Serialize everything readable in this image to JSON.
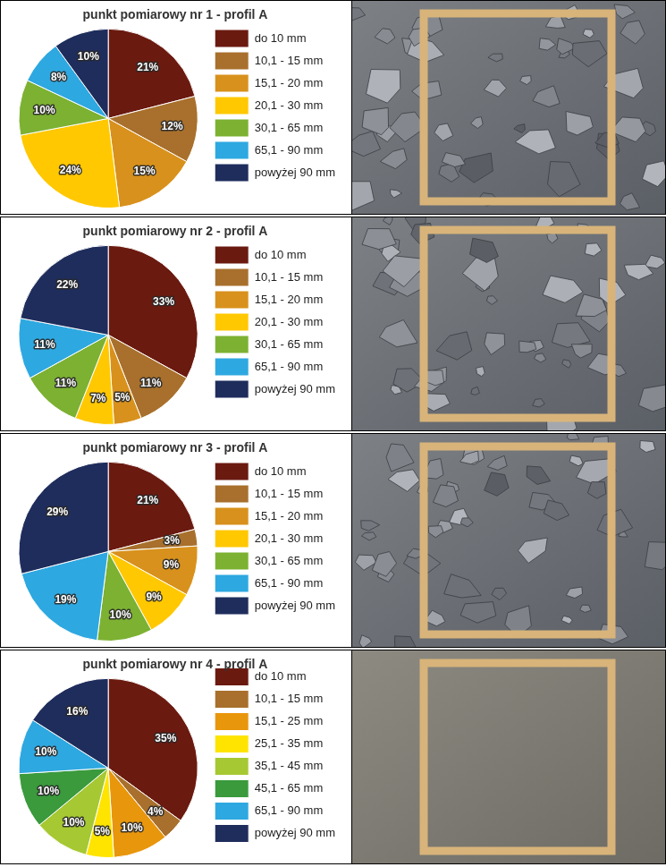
{
  "chart_data": [
    {
      "type": "pie",
      "title": "punkt pomiarowy nr 1 - profil A",
      "categories": [
        "do 10 mm",
        "10,1 - 15 mm",
        "15,1 - 20 mm",
        "20,1 - 30 mm",
        "30,1 - 65 mm",
        "65,1 - 90 mm",
        "powyżej 90 mm"
      ],
      "values": [
        21,
        12,
        15,
        24,
        10,
        8,
        10
      ],
      "value_labels": [
        "21%",
        "12%",
        "15%",
        "24%",
        "10%",
        "8%",
        "10%"
      ],
      "colors": [
        "#6b1a10",
        "#a8702c",
        "#d8911c",
        "#ffc800",
        "#7cb132",
        "#2ea8e0",
        "#1f2d5c"
      ],
      "data_labels": true,
      "legend": "right"
    },
    {
      "type": "pie",
      "title": "punkt pomiarowy nr 2 - profil A",
      "categories": [
        "do 10 mm",
        "10,1 - 15 mm",
        "15,1 - 20 mm",
        "20,1 - 30 mm",
        "30,1 - 65 mm",
        "65,1 - 90 mm",
        "powyżej 90 mm"
      ],
      "values": [
        33,
        11,
        5,
        7,
        11,
        11,
        22
      ],
      "value_labels": [
        "33%",
        "11%",
        "5%",
        "7%",
        "11%",
        "11%",
        "22%"
      ],
      "colors": [
        "#6b1a10",
        "#a8702c",
        "#d8911c",
        "#ffc800",
        "#7cb132",
        "#2ea8e0",
        "#1f2d5c"
      ],
      "data_labels": true,
      "legend": "right"
    },
    {
      "type": "pie",
      "title": "punkt pomiarowy nr 3 - profil A",
      "categories": [
        "do 10 mm",
        "10,1 - 15 mm",
        "15,1 - 20 mm",
        "20,1 - 30 mm",
        "30,1 - 65 mm",
        "65,1 - 90 mm",
        "powyżej 90 mm"
      ],
      "values": [
        21,
        3,
        9,
        9,
        10,
        19,
        29
      ],
      "value_labels": [
        "21%",
        "3%",
        "9%",
        "9%",
        "10%",
        "19%",
        "29%"
      ],
      "colors": [
        "#6b1a10",
        "#a8702c",
        "#d8911c",
        "#ffc800",
        "#7cb132",
        "#2ea8e0",
        "#1f2d5c"
      ],
      "data_labels": true,
      "legend": "right"
    },
    {
      "type": "pie",
      "title": "punkt pomiarowy nr 4 - profil A",
      "categories": [
        "do 10 mm",
        "10,1 - 15 mm",
        "15,1 - 25 mm",
        "25,1 - 35 mm",
        "35,1 - 45 mm",
        "45,1 - 65 mm",
        "65,1 - 90 mm",
        "powyżej 90 mm"
      ],
      "values": [
        35,
        4,
        10,
        5,
        10,
        10,
        10,
        16
      ],
      "value_labels": [
        "35%",
        "4%",
        "10%",
        "5%",
        "10%",
        "10%",
        "10%",
        "16%"
      ],
      "colors": [
        "#6b1a10",
        "#a8702c",
        "#e8960c",
        "#ffe400",
        "#a6c832",
        "#3a9a3c",
        "#2ea8e0",
        "#1f2d5c"
      ],
      "data_labels": true,
      "legend": "right"
    }
  ]
}
